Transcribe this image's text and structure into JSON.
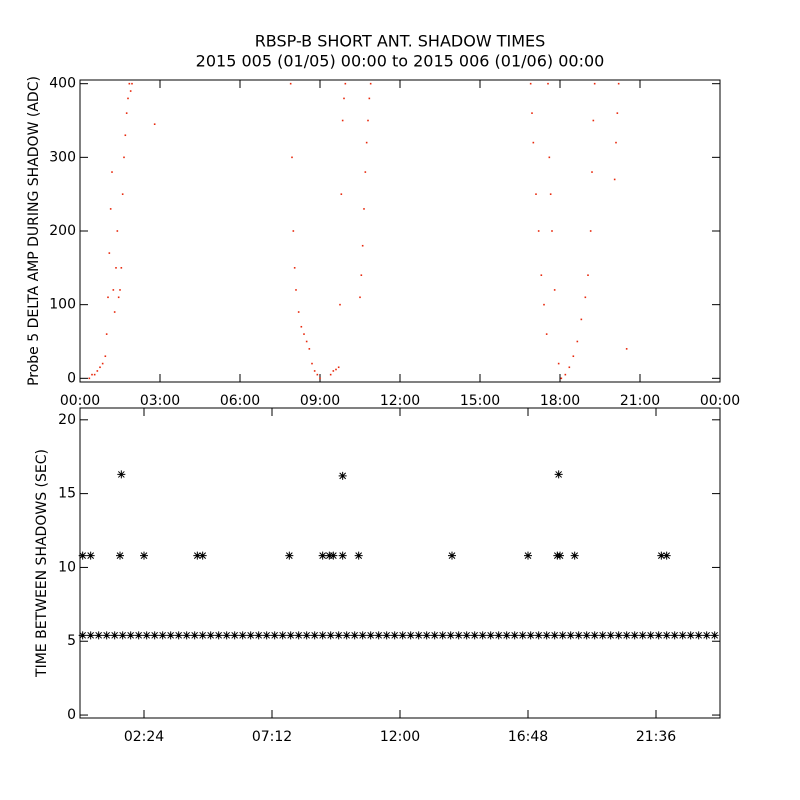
{
  "chart_data": [
    {
      "type": "scatter",
      "title": "RBSP-B SHORT ANT. SHADOW TIMES",
      "subtitle": "2015 005 (01/05) 00:00 to 2015 006 (01/06) 00:00",
      "ylabel": "Probe 5 DELTA AMP DURING SHADOW (ADC)",
      "color": "#e8280c",
      "marker": "dot",
      "xlim": [
        0,
        24
      ],
      "ylim": [
        -5,
        405
      ],
      "xticks": [
        {
          "value": 0,
          "label": "00:00"
        },
        {
          "value": 3,
          "label": "03:00"
        },
        {
          "value": 6,
          "label": "06:00"
        },
        {
          "value": 9,
          "label": "09:00"
        },
        {
          "value": 12,
          "label": "12:00"
        },
        {
          "value": 15,
          "label": "15:00"
        },
        {
          "value": 18,
          "label": "18:00"
        },
        {
          "value": 21,
          "label": "21:00"
        },
        {
          "value": 24,
          "label": "00:00"
        }
      ],
      "yticks": [
        0,
        100,
        200,
        300,
        400
      ],
      "x": [
        0.35,
        0.45,
        0.55,
        0.65,
        0.75,
        0.85,
        0.95,
        1.0,
        1.05,
        1.1,
        1.15,
        1.2,
        1.25,
        1.3,
        1.35,
        1.4,
        1.45,
        1.5,
        1.55,
        1.6,
        1.65,
        1.7,
        1.75,
        1.8,
        1.85,
        1.9,
        1.95,
        2.8,
        7.9,
        7.95,
        8.0,
        8.05,
        8.1,
        8.2,
        8.3,
        8.4,
        8.5,
        8.6,
        8.7,
        8.8,
        8.9,
        9.0,
        9.4,
        9.5,
        9.6,
        9.7,
        9.75,
        9.8,
        9.85,
        9.9,
        9.95,
        10.5,
        10.55,
        10.6,
        10.65,
        10.7,
        10.75,
        10.8,
        10.85,
        10.9,
        16.9,
        16.95,
        17.0,
        17.1,
        17.2,
        17.3,
        17.4,
        17.5,
        17.55,
        17.6,
        17.65,
        17.7,
        17.8,
        17.95,
        18.05,
        18.2,
        18.35,
        18.5,
        18.65,
        18.8,
        18.95,
        19.05,
        19.15,
        19.2,
        19.25,
        19.3,
        20.05,
        20.1,
        20.15,
        20.2,
        20.5
      ],
      "values": [
        0,
        5,
        5,
        10,
        15,
        20,
        30,
        60,
        110,
        170,
        230,
        280,
        120,
        90,
        150,
        200,
        110,
        120,
        150,
        250,
        300,
        330,
        360,
        380,
        400,
        390,
        400,
        345,
        400,
        300,
        200,
        150,
        120,
        90,
        70,
        60,
        50,
        40,
        20,
        10,
        5,
        0,
        5,
        10,
        12,
        15,
        100,
        250,
        350,
        380,
        400,
        110,
        140,
        180,
        230,
        280,
        320,
        350,
        380,
        400,
        400,
        360,
        320,
        250,
        200,
        140,
        100,
        60,
        400,
        300,
        250,
        200,
        120,
        20,
        0,
        5,
        15,
        30,
        50,
        80,
        110,
        140,
        200,
        280,
        350,
        400,
        270,
        320,
        360,
        400,
        40
      ]
    },
    {
      "type": "scatter",
      "ylabel": "TIME BETWEEN SHADOWS (SEC)",
      "color": "#000000",
      "marker": "star",
      "xlim": [
        0,
        24
      ],
      "ylim": [
        -0.2,
        20.8
      ],
      "xticks": [
        {
          "value": 2.4,
          "label": "02:24"
        },
        {
          "value": 7.2,
          "label": "07:12"
        },
        {
          "value": 12,
          "label": "12:00"
        },
        {
          "value": 16.8,
          "label": "16:48"
        },
        {
          "value": 21.6,
          "label": "21:36"
        }
      ],
      "yticks": [
        0,
        5,
        10,
        15,
        20
      ],
      "x": [
        0.1,
        0.4,
        0.7,
        1.0,
        1.3,
        1.6,
        1.9,
        2.2,
        2.5,
        2.8,
        3.1,
        3.4,
        3.7,
        4.0,
        4.3,
        4.6,
        4.9,
        5.2,
        5.5,
        5.8,
        6.1,
        6.4,
        6.7,
        7.0,
        7.3,
        7.6,
        7.9,
        8.2,
        8.5,
        8.8,
        9.1,
        9.4,
        9.7,
        10.0,
        10.3,
        10.6,
        10.9,
        11.2,
        11.5,
        11.8,
        12.1,
        12.4,
        12.7,
        13.0,
        13.3,
        13.6,
        13.9,
        14.2,
        14.5,
        14.8,
        15.1,
        15.4,
        15.7,
        16.0,
        16.3,
        16.6,
        16.9,
        17.2,
        17.5,
        17.8,
        18.1,
        18.4,
        18.7,
        19.0,
        19.3,
        19.6,
        19.9,
        20.2,
        20.5,
        20.8,
        21.1,
        21.4,
        21.7,
        22.0,
        22.3,
        22.6,
        22.9,
        23.2,
        23.5,
        23.8,
        0.1,
        0.4,
        1.5,
        2.4,
        4.4,
        4.6,
        7.85,
        9.1,
        9.35,
        9.5,
        9.85,
        10.45,
        13.95,
        16.8,
        17.9,
        18.0,
        18.55,
        21.8,
        22.0,
        1.55,
        9.85,
        17.95
      ],
      "values": [
        5.4,
        5.4,
        5.4,
        5.4,
        5.4,
        5.4,
        5.4,
        5.4,
        5.4,
        5.4,
        5.4,
        5.4,
        5.4,
        5.4,
        5.4,
        5.4,
        5.4,
        5.4,
        5.4,
        5.4,
        5.4,
        5.4,
        5.4,
        5.4,
        5.4,
        5.4,
        5.4,
        5.4,
        5.4,
        5.4,
        5.4,
        5.4,
        5.4,
        5.4,
        5.4,
        5.4,
        5.4,
        5.4,
        5.4,
        5.4,
        5.4,
        5.4,
        5.4,
        5.4,
        5.4,
        5.4,
        5.4,
        5.4,
        5.4,
        5.4,
        5.4,
        5.4,
        5.4,
        5.4,
        5.4,
        5.4,
        5.4,
        5.4,
        5.4,
        5.4,
        5.4,
        5.4,
        5.4,
        5.4,
        5.4,
        5.4,
        5.4,
        5.4,
        5.4,
        5.4,
        5.4,
        5.4,
        5.4,
        5.4,
        5.4,
        5.4,
        5.4,
        5.4,
        5.4,
        5.4,
        10.8,
        10.8,
        10.8,
        10.8,
        10.8,
        10.8,
        10.8,
        10.8,
        10.8,
        10.8,
        10.8,
        10.8,
        10.8,
        10.8,
        10.8,
        10.8,
        10.8,
        10.8,
        10.8,
        16.3,
        16.2,
        16.3
      ]
    }
  ]
}
